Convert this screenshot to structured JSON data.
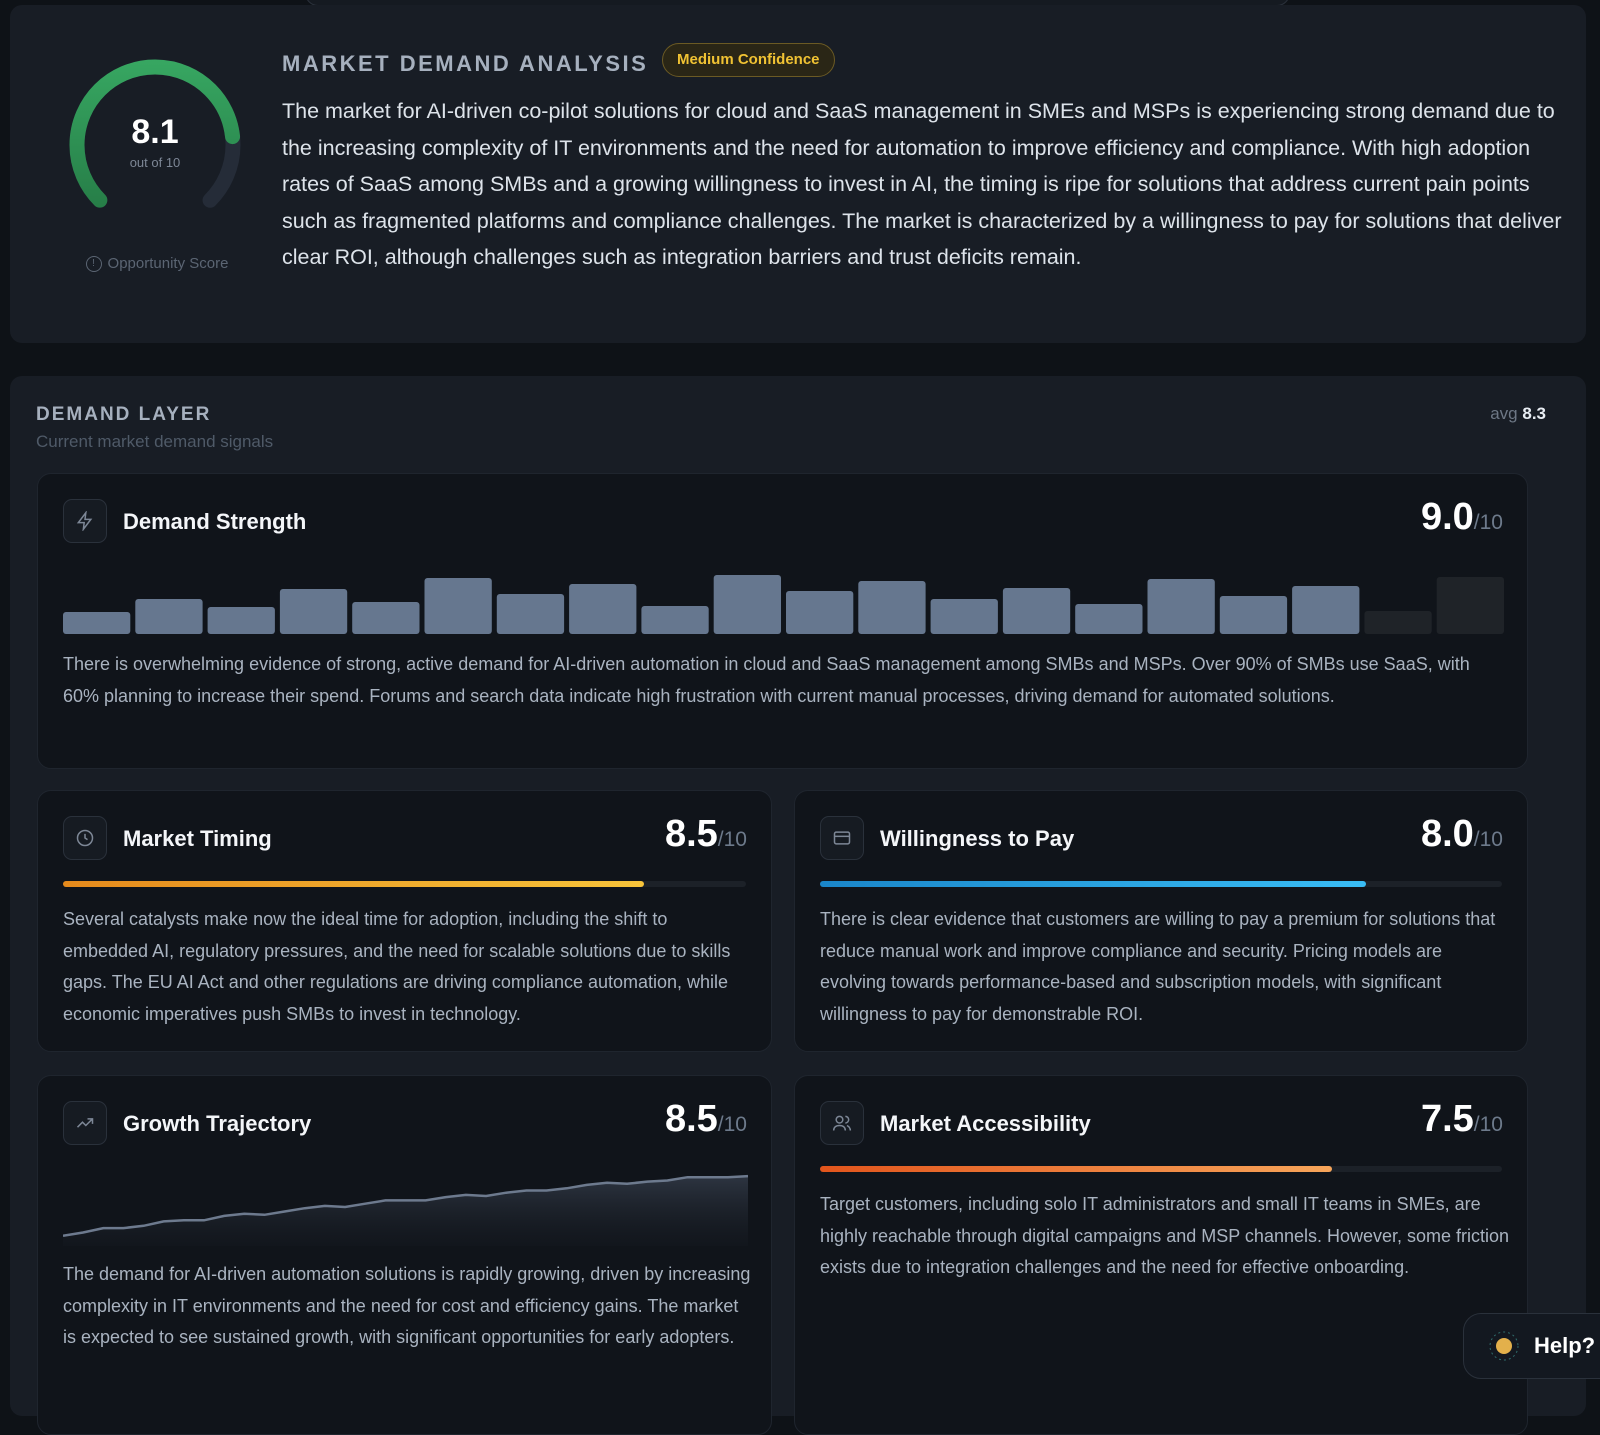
{
  "overview": {
    "title": "MARKET DEMAND ANALYSIS",
    "confidence_badge": "Medium Confidence",
    "score": "8.1",
    "score_value": 8.1,
    "score_max_label": "out of 10",
    "score_label": "Opportunity Score",
    "summary": "The market for AI-driven co-pilot solutions for cloud and SaaS management in SMEs and MSPs is experiencing strong demand due to the increasing complexity of IT environments and the need for automation to improve efficiency and compliance. With high adoption rates of SaaS among SMBs and a growing willingness to invest in AI, the timing is ripe for solutions that address current pain points such as fragmented platforms and compliance challenges. The market is characterized by a willingness to pay for solutions that deliver clear ROI, although challenges such as integration barriers and trust deficits remain."
  },
  "layer": {
    "title": "DEMAND LAYER",
    "subtitle": "Current market demand signals",
    "avg_label": "avg",
    "avg_value": "8.3"
  },
  "metrics": {
    "demand_strength": {
      "title": "Demand Strength",
      "score": "9.0",
      "max": "/10",
      "description": "There is overwhelming evidence of strong, active demand for AI-driven automation in cloud and SaaS management among SMBs and MSPs. Over 90% of SMBs use SaaS, with 60% planning to increase their spend. Forums and search data indicate high frustration with current manual processes, driving demand for automated solutions."
    },
    "market_timing": {
      "title": "Market Timing",
      "score": "8.5",
      "max": "/10",
      "progress": 0.85,
      "description": "Several catalysts make now the ideal time for adoption, including the shift to embedded AI, regulatory pressures, and the need for scalable solutions due to skills gaps. The EU AI Act and other regulations are driving compliance automation, while economic imperatives push SMBs to invest in technology."
    },
    "willingness_to_pay": {
      "title": "Willingness to Pay",
      "score": "8.0",
      "max": "/10",
      "progress": 0.8,
      "description": "There is clear evidence that customers are willing to pay a premium for solutions that reduce manual work and improve compliance and security. Pricing models are evolving towards performance-based and subscription models, with significant willingness to pay for demonstrable ROI."
    },
    "growth_trajectory": {
      "title": "Growth Trajectory",
      "score": "8.5",
      "max": "/10",
      "description": "The demand for AI-driven automation solutions is rapidly growing, driven by increasing complexity in IT environments and the need for cost and efficiency gains. The market is expected to see sustained growth, with significant opportunities for early adopters."
    },
    "market_accessibility": {
      "title": "Market Accessibility",
      "score": "7.5",
      "max": "/10",
      "progress": 0.75,
      "description": "Target customers, including solo IT administrators and small IT teams in SMEs, are highly reachable through digital campaigns and MSP channels. However, some friction exists due to integration challenges and the need for effective onboarding."
    }
  },
  "chart_data": [
    {
      "type": "bar",
      "title": "Demand Strength signal",
      "values": [
        22,
        35,
        27,
        45,
        32,
        56,
        40,
        50,
        28,
        59,
        43,
        53,
        35,
        46,
        30,
        55,
        38,
        48,
        23,
        57
      ],
      "active": [
        true,
        true,
        true,
        true,
        true,
        true,
        true,
        true,
        true,
        true,
        true,
        true,
        true,
        true,
        true,
        true,
        true,
        true,
        false,
        false
      ]
    },
    {
      "type": "area",
      "title": "Growth Trajectory trend",
      "values": [
        2,
        5,
        9,
        9,
        11,
        15,
        16,
        16,
        20,
        22,
        21,
        24,
        27,
        29,
        28,
        31,
        34,
        34,
        34,
        37,
        39,
        38,
        41,
        43,
        43,
        45,
        48,
        50,
        49,
        51,
        52,
        55,
        55,
        55,
        56
      ]
    }
  ],
  "colors": {
    "timing": "#f5a623",
    "pay": "#2aa7e6",
    "access": "#f07a2a",
    "gauge": "#2fa15a"
  },
  "help": {
    "label": "Help?"
  }
}
